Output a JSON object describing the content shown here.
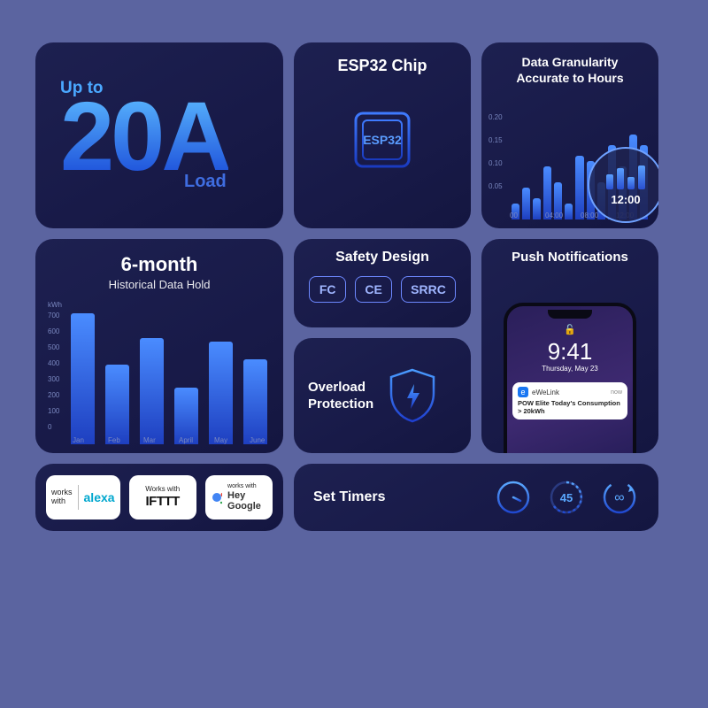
{
  "colors": {
    "page_bg": "#5b64a0",
    "card_bg_from": "#1d2050",
    "card_bg_to": "#141640",
    "accent_from": "#5ab7ff",
    "accent_to": "#1a4bd8",
    "axis_text": "#7a88c0",
    "cert_border": "#6d88ff"
  },
  "load": {
    "upto": "Up to",
    "value": "20A",
    "label": "Load"
  },
  "esp": {
    "title": "ESP32 Chip",
    "chip_label": "ESP32"
  },
  "gran": {
    "title_line1": "Data Granularity",
    "title_line2": "Accurate to Hours",
    "y_ticks": [
      "0.20",
      "0.15",
      "0.10",
      "0.05"
    ],
    "x_ticks": [
      "00",
      "04:00",
      "08:00",
      "12:00"
    ],
    "bars": [
      0.03,
      0.06,
      0.04,
      0.1,
      0.07,
      0.03,
      0.12,
      0.11,
      0.07,
      0.14,
      0.1,
      0.16,
      0.14
    ],
    "mag_bars": [
      0.6,
      0.85,
      0.5,
      0.95
    ],
    "mag_time": "12:00"
  },
  "hist": {
    "title": "6-month",
    "subtitle": "Historical Data Hold",
    "y_unit": "kWh",
    "y_ticks": [
      "700",
      "600",
      "500",
      "400",
      "300",
      "200",
      "100",
      "0"
    ],
    "x_labels": [
      "Jan",
      "Feb",
      "Mar",
      "April",
      "May",
      "June"
    ],
    "values": [
      690,
      420,
      560,
      300,
      540,
      450
    ]
  },
  "safety": {
    "title": "Safety Design",
    "certs": [
      "FC",
      "CE",
      "SRRC"
    ]
  },
  "overload": {
    "line1": "Overload",
    "line2": "Protection"
  },
  "push": {
    "title": "Push Notifications",
    "phone": {
      "clock": "9:41",
      "date": "Thursday, May 23",
      "notif_app": "eWeLink",
      "notif_when": "now",
      "notif_msg": "POW Elite Today's Consumption > 20kWh"
    }
  },
  "works": {
    "alexa_prefix": "works with",
    "alexa_brand": "alexa",
    "ifttt_prefix": "Works with",
    "ifttt_brand": "IFTTT",
    "google_prefix": "works with",
    "google_brand": "Hey Google"
  },
  "timers": {
    "title": "Set Timers",
    "countdown_value": "45"
  }
}
